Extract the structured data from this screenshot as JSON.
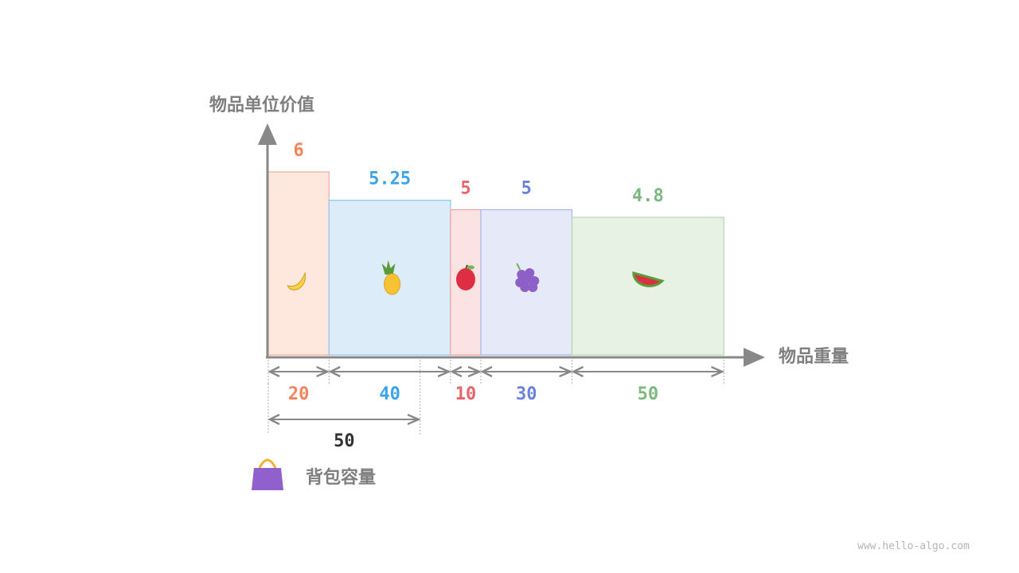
{
  "chart_data": {
    "type": "bar",
    "variable_width": true,
    "ylabel": "物品单位价值",
    "xlabel": "物品重量",
    "items": [
      {
        "icon": "banana-icon",
        "weight": 20,
        "value": 6,
        "value_label": "6",
        "weight_label": "20",
        "color": "#f5835a",
        "fill": "#fee8de",
        "stroke": "#f5aaa0"
      },
      {
        "icon": "pineapple-icon",
        "weight": 40,
        "value": 5.25,
        "value_label": "5.25",
        "weight_label": "40",
        "color": "#3ba3e8",
        "fill": "#dcedf9",
        "stroke": "#8ec7ee"
      },
      {
        "icon": "apple-icon",
        "weight": 10,
        "value": 5,
        "value_label": "5",
        "weight_label": "10",
        "color": "#e8636b",
        "fill": "#fbe3e3",
        "stroke": "#f0a0a4"
      },
      {
        "icon": "grapes-icon",
        "weight": 30,
        "value": 5,
        "value_label": "5",
        "weight_label": "30",
        "color": "#6a82de",
        "fill": "#e6e9f8",
        "stroke": "#a7b3ec"
      },
      {
        "icon": "watermelon-icon",
        "weight": 50,
        "value": 4.8,
        "value_label": "4.8",
        "weight_label": "50",
        "color": "#7cb87e",
        "fill": "#e7f2e5",
        "stroke": "#b6d8b4"
      }
    ],
    "capacity": 50,
    "capacity_label": "50"
  },
  "legend": {
    "icon": "handbag-icon",
    "label": "背包容量"
  },
  "footer": "www.hello-algo.com"
}
